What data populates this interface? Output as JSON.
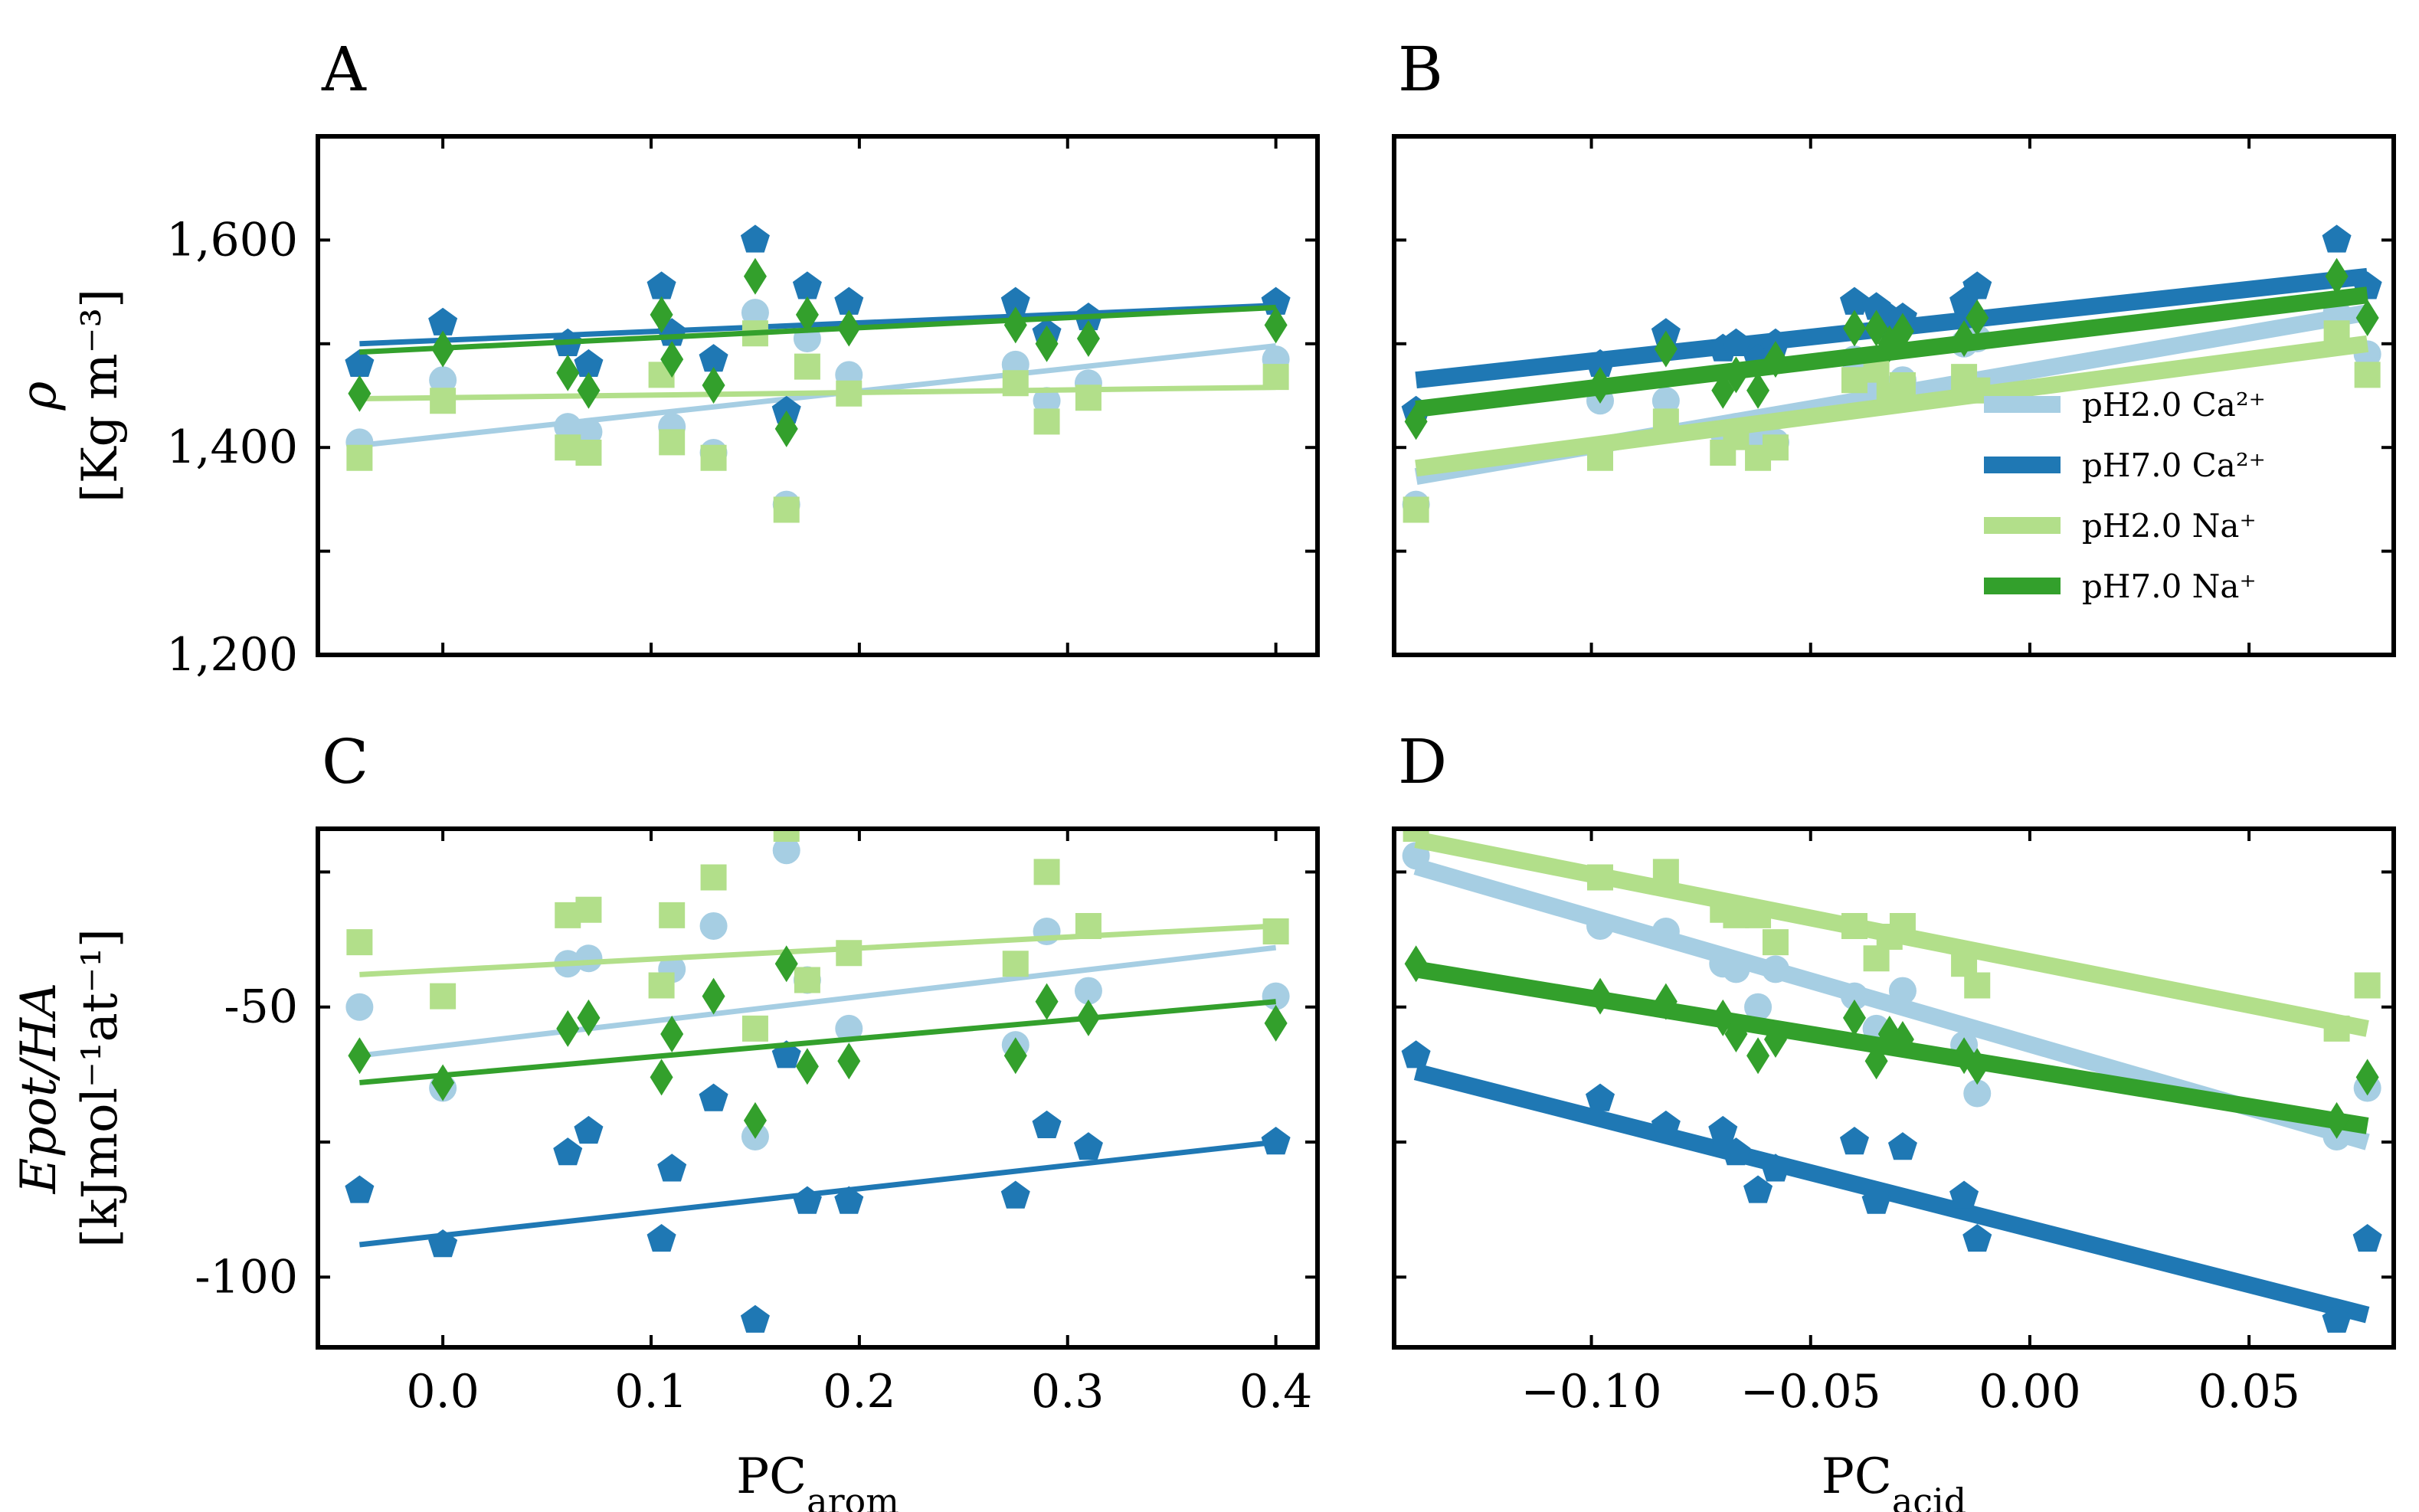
{
  "colors": {
    "ph2_ca": "#a6cee3",
    "ph7_ca": "#1f78b4",
    "ph2_na": "#b2df8a",
    "ph7_na": "#33a02c"
  },
  "legend": {
    "items": [
      {
        "label": "pH2.0 Ca²⁺",
        "series": "ph2_ca"
      },
      {
        "label": "pH7.0 Ca²⁺",
        "series": "ph7_ca"
      },
      {
        "label": "pH2.0 Na⁺",
        "series": "ph2_na"
      },
      {
        "label": "pH7.0 Na⁺",
        "series": "ph7_na"
      }
    ]
  },
  "chart_data": [
    {
      "id": "A",
      "panel_label": "A",
      "type": "scatter",
      "xlim": [
        -0.06,
        0.42
      ],
      "ylim": [
        1200,
        1700
      ],
      "xticks": [
        0.0,
        0.1,
        0.2,
        0.3,
        0.4
      ],
      "xticklabels": [],
      "yticks": [
        1200,
        1300,
        1400,
        1500,
        1600
      ],
      "yticklabels": [
        "1,200",
        "",
        "1,400",
        "",
        "1,600"
      ],
      "ylabel_lines": [
        "ρ",
        "[Kg m⁻³]"
      ],
      "xlabel": "",
      "xlabel_sub": "",
      "series": [
        {
          "name": "pH2.0 Ca²⁺",
          "key": "ph2_ca",
          "marker": "circle",
          "lw": 7,
          "x": [
            -0.04,
            0.0,
            0.06,
            0.07,
            0.11,
            0.13,
            0.15,
            0.165,
            0.175,
            0.195,
            0.275,
            0.29,
            0.31,
            0.4
          ],
          "y": [
            1405,
            1465,
            1420,
            1415,
            1420,
            1395,
            1530,
            1345,
            1505,
            1470,
            1480,
            1445,
            1462,
            1485
          ],
          "fit": [
            [
              -0.04,
              1402
            ],
            [
              0.4,
              1498
            ]
          ]
        },
        {
          "name": "pH7.0 Ca²⁺",
          "key": "ph7_ca",
          "marker": "pentagon",
          "lw": 7,
          "x": [
            -0.04,
            0.0,
            0.06,
            0.07,
            0.105,
            0.11,
            0.13,
            0.15,
            0.165,
            0.175,
            0.195,
            0.275,
            0.29,
            0.31,
            0.4
          ],
          "y": [
            1480,
            1520,
            1500,
            1480,
            1555,
            1510,
            1485,
            1600,
            1435,
            1555,
            1540,
            1540,
            1510,
            1525,
            1540
          ],
          "fit": [
            [
              -0.04,
              1500
            ],
            [
              0.4,
              1537
            ]
          ]
        },
        {
          "name": "pH2.0 Na⁺",
          "key": "ph2_na",
          "marker": "square",
          "lw": 7,
          "x": [
            -0.04,
            0.0,
            0.06,
            0.07,
            0.105,
            0.11,
            0.13,
            0.15,
            0.165,
            0.175,
            0.195,
            0.275,
            0.29,
            0.31,
            0.4
          ],
          "y": [
            1390,
            1445,
            1400,
            1395,
            1470,
            1405,
            1390,
            1510,
            1340,
            1478,
            1452,
            1462,
            1425,
            1448,
            1468
          ],
          "fit": [
            [
              -0.04,
              1447
            ],
            [
              0.4,
              1458
            ]
          ]
        },
        {
          "name": "pH7.0 Na⁺",
          "key": "ph7_na",
          "marker": "diamond",
          "lw": 7,
          "x": [
            -0.04,
            0.0,
            0.06,
            0.07,
            0.105,
            0.11,
            0.13,
            0.15,
            0.165,
            0.175,
            0.195,
            0.275,
            0.29,
            0.31,
            0.4
          ],
          "y": [
            1452,
            1495,
            1472,
            1455,
            1528,
            1485,
            1460,
            1565,
            1418,
            1528,
            1515,
            1518,
            1500,
            1505,
            1518
          ],
          "fit": [
            [
              -0.04,
              1492
            ],
            [
              0.4,
              1535
            ]
          ]
        }
      ]
    },
    {
      "id": "B",
      "panel_label": "B",
      "type": "scatter",
      "xlim": [
        -0.145,
        0.083
      ],
      "ylim": [
        1200,
        1700
      ],
      "xticks": [
        -0.1,
        -0.05,
        0.0,
        0.05
      ],
      "xticklabels": [],
      "yticks": [
        1200,
        1300,
        1400,
        1500,
        1600
      ],
      "yticklabels": [],
      "ylabel_lines": [],
      "xlabel": "",
      "xlabel_sub": "",
      "series": [
        {
          "name": "pH2.0 Ca²⁺",
          "key": "ph2_ca",
          "marker": "circle",
          "lw": 22,
          "x": [
            -0.14,
            -0.098,
            -0.083,
            -0.07,
            -0.067,
            -0.062,
            -0.058,
            -0.04,
            -0.035,
            -0.029,
            -0.015,
            -0.012,
            0.07,
            0.077
          ],
          "y": [
            1345,
            1445,
            1445,
            1415,
            1420,
            1410,
            1405,
            1485,
            1465,
            1465,
            1500,
            1505,
            1530,
            1490
          ],
          "fit": [
            [
              -0.14,
              1372
            ],
            [
              0.077,
              1530
            ]
          ]
        },
        {
          "name": "pH7.0 Ca²⁺",
          "key": "ph7_ca",
          "marker": "pentagon",
          "lw": 22,
          "x": [
            -0.14,
            -0.098,
            -0.083,
            -0.07,
            -0.067,
            -0.062,
            -0.058,
            -0.04,
            -0.035,
            -0.032,
            -0.029,
            -0.015,
            -0.012,
            0.07,
            0.077
          ],
          "y": [
            1435,
            1480,
            1510,
            1495,
            1500,
            1485,
            1500,
            1540,
            1535,
            1525,
            1525,
            1540,
            1555,
            1600,
            1555
          ],
          "fit": [
            [
              -0.14,
              1465
            ],
            [
              0.077,
              1565
            ]
          ]
        },
        {
          "name": "pH2.0 Na⁺",
          "key": "ph2_na",
          "marker": "square",
          "lw": 22,
          "x": [
            -0.14,
            -0.098,
            -0.083,
            -0.07,
            -0.067,
            -0.062,
            -0.058,
            -0.04,
            -0.035,
            -0.032,
            -0.029,
            -0.015,
            -0.012,
            0.07,
            0.077
          ],
          "y": [
            1340,
            1390,
            1425,
            1395,
            1410,
            1390,
            1400,
            1465,
            1475,
            1450,
            1460,
            1468,
            1455,
            1510,
            1470
          ],
          "fit": [
            [
              -0.14,
              1380
            ],
            [
              0.077,
              1500
            ]
          ]
        },
        {
          "name": "pH7.0 Na⁺",
          "key": "ph7_na",
          "marker": "diamond",
          "lw": 22,
          "x": [
            -0.14,
            -0.098,
            -0.083,
            -0.07,
            -0.067,
            -0.062,
            -0.058,
            -0.04,
            -0.035,
            -0.032,
            -0.029,
            -0.015,
            -0.012,
            0.07,
            0.077
          ],
          "y": [
            1425,
            1460,
            1495,
            1455,
            1470,
            1455,
            1485,
            1515,
            1515,
            1500,
            1512,
            1505,
            1525,
            1565,
            1525
          ],
          "fit": [
            [
              -0.14,
              1437
            ],
            [
              0.077,
              1547
            ]
          ]
        }
      ]
    },
    {
      "id": "C",
      "panel_label": "C",
      "type": "scatter",
      "xlim": [
        -0.06,
        0.42
      ],
      "ylim": [
        -113,
        -17
      ],
      "xticks": [
        0.0,
        0.1,
        0.2,
        0.3,
        0.4
      ],
      "xticklabels": [
        "0.0",
        "0.1",
        "0.2",
        "0.3",
        "0.4"
      ],
      "yticks": [
        -100,
        -75,
        -50,
        -25
      ],
      "yticklabels": [
        "-100",
        "",
        "-50",
        ""
      ],
      "ylabel_lines": [
        "Epot/HA",
        "[kJmol⁻¹at⁻¹]"
      ],
      "xlabel": "PC",
      "xlabel_sub": "arom",
      "series": [
        {
          "name": "pH2.0 Ca²⁺",
          "key": "ph2_ca",
          "marker": "circle",
          "lw": 7,
          "x": [
            -0.04,
            0.0,
            0.06,
            0.07,
            0.11,
            0.13,
            0.15,
            0.165,
            0.175,
            0.195,
            0.275,
            0.29,
            0.31,
            0.4
          ],
          "y": [
            -50,
            -65,
            -42,
            -41,
            -43,
            -35,
            -74,
            -21,
            -45,
            -54,
            -57,
            -36,
            -47,
            -48
          ],
          "fit": [
            [
              -0.04,
              -59
            ],
            [
              0.4,
              -39
            ]
          ]
        },
        {
          "name": "pH7.0 Ca²⁺",
          "key": "ph7_ca",
          "marker": "pentagon",
          "lw": 7,
          "x": [
            -0.04,
            0.0,
            0.06,
            0.07,
            0.105,
            0.11,
            0.13,
            0.15,
            0.165,
            0.175,
            0.195,
            0.275,
            0.29,
            0.31,
            0.4
          ],
          "y": [
            -84,
            -94,
            -77,
            -73,
            -93,
            -80,
            -67,
            -108,
            -59,
            -86,
            -86,
            -85,
            -72,
            -76,
            -75
          ],
          "fit": [
            [
              -0.04,
              -94
            ],
            [
              0.4,
              -75
            ]
          ]
        },
        {
          "name": "pH2.0 Na⁺",
          "key": "ph2_na",
          "marker": "square",
          "lw": 7,
          "x": [
            -0.04,
            0.0,
            0.06,
            0.07,
            0.105,
            0.11,
            0.13,
            0.15,
            0.165,
            0.175,
            0.195,
            0.275,
            0.29,
            0.31,
            0.4
          ],
          "y": [
            -38,
            -48,
            -33,
            -32,
            -46,
            -33,
            -26,
            -54,
            -17,
            -45,
            -40,
            -42,
            -25,
            -35,
            -36
          ],
          "fit": [
            [
              -0.04,
              -44
            ],
            [
              0.4,
              -35
            ]
          ]
        },
        {
          "name": "pH7.0 Na⁺",
          "key": "ph7_na",
          "marker": "diamond",
          "lw": 7,
          "x": [
            -0.04,
            0.0,
            0.06,
            0.07,
            0.105,
            0.11,
            0.13,
            0.15,
            0.165,
            0.175,
            0.195,
            0.275,
            0.29,
            0.31,
            0.4
          ],
          "y": [
            -59,
            -64,
            -54,
            -52,
            -63,
            -55,
            -48,
            -71,
            -42,
            -61,
            -60,
            -59,
            -49,
            -52,
            -53
          ],
          "fit": [
            [
              -0.04,
              -64
            ],
            [
              0.4,
              -49
            ]
          ]
        }
      ]
    },
    {
      "id": "D",
      "panel_label": "D",
      "type": "scatter",
      "xlim": [
        -0.145,
        0.083
      ],
      "ylim": [
        -113,
        -17
      ],
      "xticks": [
        -0.1,
        -0.05,
        0.0,
        0.05
      ],
      "xticklabels": [
        "−0.10",
        "−0.05",
        "0.00",
        "0.05"
      ],
      "yticks": [
        -100,
        -75,
        -50,
        -25
      ],
      "yticklabels": [],
      "ylabel_lines": [],
      "xlabel": "PC",
      "xlabel_sub": "acid",
      "series": [
        {
          "name": "pH2.0 Ca²⁺",
          "key": "ph2_ca",
          "marker": "circle",
          "lw": 22,
          "x": [
            -0.14,
            -0.098,
            -0.083,
            -0.07,
            -0.067,
            -0.062,
            -0.058,
            -0.04,
            -0.035,
            -0.029,
            -0.015,
            -0.012,
            0.07,
            0.077
          ],
          "y": [
            -22,
            -35,
            -36,
            -42,
            -43,
            -50,
            -43,
            -48,
            -54,
            -47,
            -57,
            -66,
            -74,
            -65
          ],
          "fit": [
            [
              -0.14,
              -24
            ],
            [
              0.077,
              -75
            ]
          ]
        },
        {
          "name": "pH7.0 Ca²⁺",
          "key": "ph7_ca",
          "marker": "pentagon",
          "lw": 22,
          "x": [
            -0.14,
            -0.098,
            -0.083,
            -0.07,
            -0.067,
            -0.062,
            -0.058,
            -0.04,
            -0.035,
            -0.029,
            -0.015,
            -0.012,
            0.07,
            0.077
          ],
          "y": [
            -59,
            -67,
            -72,
            -73,
            -77,
            -84,
            -80,
            -75,
            -86,
            -76,
            -85,
            -93,
            -108,
            -93
          ],
          "fit": [
            [
              -0.14,
              -62
            ],
            [
              0.077,
              -107
            ]
          ]
        },
        {
          "name": "pH2.0 Na⁺",
          "key": "ph2_na",
          "marker": "square",
          "lw": 22,
          "x": [
            -0.14,
            -0.098,
            -0.083,
            -0.07,
            -0.067,
            -0.062,
            -0.058,
            -0.04,
            -0.035,
            -0.032,
            -0.029,
            -0.015,
            -0.012,
            0.07,
            0.077
          ],
          "y": [
            -17,
            -26,
            -25,
            -32,
            -33,
            -33,
            -38,
            -35,
            -41,
            -37,
            -35,
            -42,
            -46,
            -54,
            -46
          ],
          "fit": [
            [
              -0.14,
              -19
            ],
            [
              0.077,
              -54
            ]
          ]
        },
        {
          "name": "pH7.0 Na⁺",
          "key": "ph7_na",
          "marker": "diamond",
          "lw": 22,
          "x": [
            -0.14,
            -0.098,
            -0.083,
            -0.07,
            -0.067,
            -0.062,
            -0.058,
            -0.04,
            -0.035,
            -0.032,
            -0.029,
            -0.015,
            -0.012,
            0.07,
            0.077
          ],
          "y": [
            -42,
            -48,
            -49,
            -52,
            -55,
            -59,
            -56,
            -52,
            -60,
            -55,
            -56,
            -59,
            -61,
            -71,
            -63
          ],
          "fit": [
            [
              -0.14,
              -43
            ],
            [
              0.077,
              -72
            ]
          ]
        }
      ]
    }
  ]
}
